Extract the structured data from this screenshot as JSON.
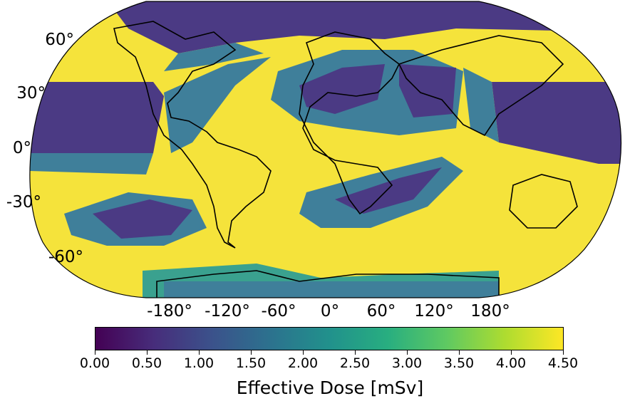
{
  "figure": {
    "projection": "Robinson (world)",
    "lat_labels": [
      "60°",
      "30°",
      "0°",
      "-30°",
      "-60°"
    ],
    "lon_labels": [
      "-180°",
      "-120°",
      "-60°",
      "0°",
      "60°",
      "120°",
      "180°"
    ],
    "colorbar": {
      "title": "Effective Dose [mSv]",
      "ticks": [
        "0.00",
        "0.50",
        "1.00",
        "1.50",
        "2.00",
        "2.50",
        "3.00",
        "3.50",
        "4.00",
        "4.50"
      ],
      "range": [
        0.0,
        4.5
      ],
      "colormap": "viridis",
      "colors": [
        "#440154",
        "#472d7b",
        "#3b528b",
        "#2c728e",
        "#21918c",
        "#28ae80",
        "#5ec962",
        "#addc30",
        "#fde725"
      ]
    },
    "map_colors": {
      "high": "#f5e33b",
      "mid": "#3f7f9a",
      "midlight": "#3aa18f",
      "low": "#4b3a84",
      "coast": "#000000"
    }
  }
}
